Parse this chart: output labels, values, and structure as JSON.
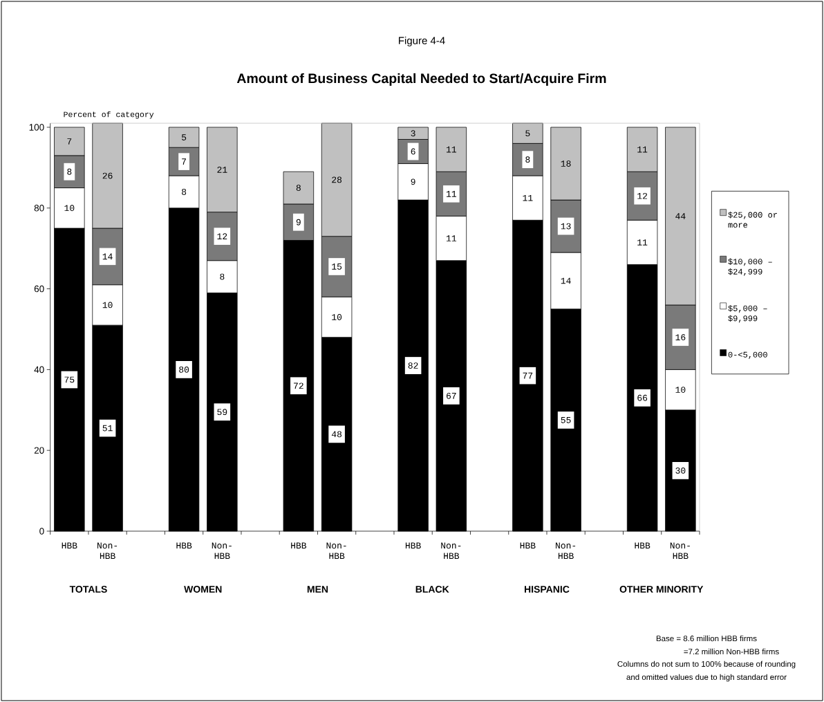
{
  "chart_data": {
    "type": "bar",
    "stacked": true,
    "title": "Amount of Business Capital Needed to Start/Acquire Firm",
    "ylabel": "Percent of category",
    "categories": [
      "HBB",
      "Non-HBB",
      null,
      "HBB",
      "Non-HBB",
      null,
      "HBB",
      "Non-HBB",
      null,
      "HBB",
      "Non-HBB",
      null,
      "HBB",
      "Non-HBB",
      null,
      "HBB",
      "Non-HBB"
    ],
    "series": [
      {
        "name": "0-<5,000",
        "color": "#000000",
        "values": [
          75,
          51,
          null,
          80,
          59,
          null,
          72,
          48,
          null,
          82,
          67,
          null,
          77,
          55,
          null,
          66,
          30
        ]
      },
      {
        "name": "$5,000 – $9,999",
        "color": "#ffffff",
        "values": [
          10,
          10,
          null,
          8,
          8,
          null,
          null,
          10,
          null,
          9,
          11,
          null,
          11,
          14,
          null,
          11,
          10
        ]
      },
      {
        "name": "$10,000 – $24,999",
        "color": "#7a7a7a",
        "values": [
          8,
          14,
          null,
          7,
          12,
          null,
          9,
          15,
          null,
          6,
          11,
          null,
          8,
          13,
          null,
          12,
          16
        ]
      },
      {
        "name": "$25,000 or more",
        "color": "#c0c0c0",
        "values": [
          7,
          26,
          null,
          5,
          21,
          null,
          8,
          28,
          null,
          3,
          11,
          null,
          5,
          18,
          null,
          11,
          44
        ]
      }
    ],
    "ylim": [
      0,
      101
    ],
    "yticks": [
      0,
      20,
      40,
      60,
      80,
      100
    ],
    "data_labels": true,
    "legend": "right",
    "annotations": [
      "Figure 4-4",
      "TOTALS",
      "WOMEN",
      "MEN",
      "BLACK",
      "HISPANIC",
      "OTHER MINORITY",
      "Base = 8.6 million HBB firms",
      "=7.2 million Non-HBB firms",
      "Columns do not sum to 100% because of rounding",
      "and omitted values due to high standard error"
    ]
  }
}
